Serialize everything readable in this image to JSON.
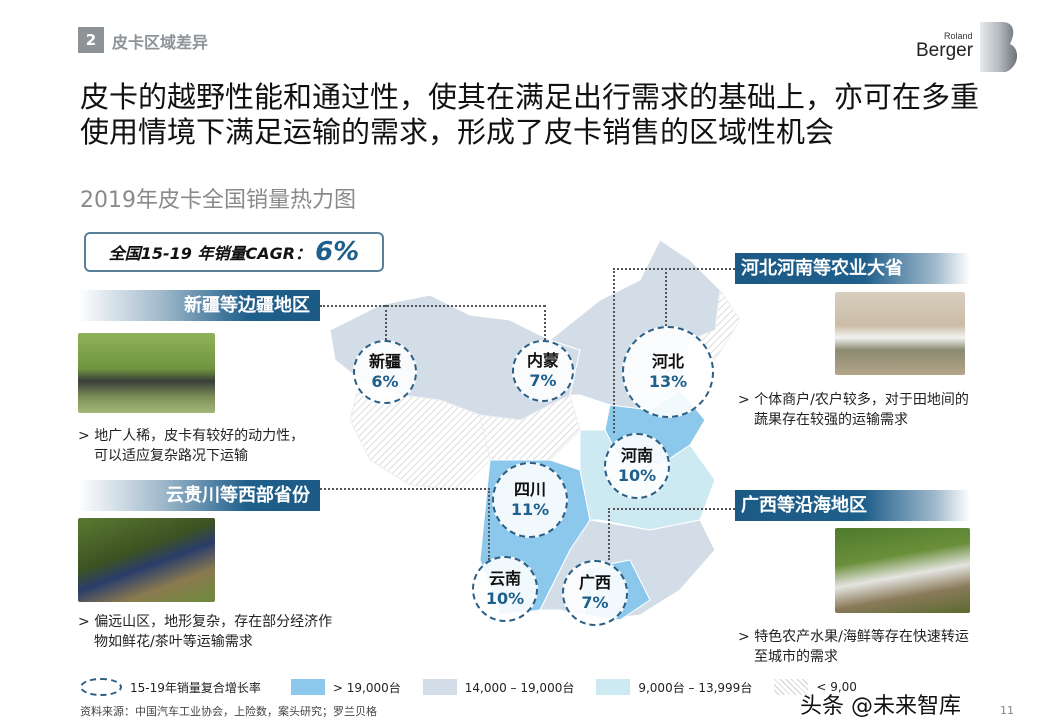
{
  "header": {
    "section_number": "2",
    "section_title": "皮卡区域差异",
    "logo_small": "Roland",
    "logo_large": "Berger"
  },
  "headline": "皮卡的越野性能和通过性，使其在满足出行需求的基础上，亦可在多重使用情境下满足运输的需求，形成了皮卡销售的区域性机会",
  "subtitle": "2019年皮卡全国销量热力图",
  "cagr": {
    "label": "全国15-19 年销量CAGR：",
    "value": "6%"
  },
  "left_panels": [
    {
      "title": "新疆等边疆地区",
      "text": "地广人稀，皮卡有较好的动力性，可以适应复杂路况下运输"
    },
    {
      "title": "云贵川等西部省份",
      "text": "偏远山区，地形复杂，存在部分经济作物如鲜花/茶叶等运输需求"
    }
  ],
  "right_panels": [
    {
      "title": "河北河南等农业大省",
      "text": "个体商户/农户较多，对于田地间的蔬果存在较强的运输需求"
    },
    {
      "title": "广西等沿海地区",
      "text": "特色农产水果/海鲜等存在快速转运至城市的需求"
    }
  ],
  "bullet_marker": ">",
  "regions": [
    {
      "name": "新疆",
      "cagr": "6%"
    },
    {
      "name": "内蒙",
      "cagr": "7%"
    },
    {
      "name": "河北",
      "cagr": "13%"
    },
    {
      "name": "河南",
      "cagr": "10%"
    },
    {
      "name": "四川",
      "cagr": "11%"
    },
    {
      "name": "云南",
      "cagr": "10%"
    },
    {
      "name": "广西",
      "cagr": "7%"
    }
  ],
  "legend": [
    {
      "label": "15-19年销量复合增长率",
      "type": "dashed-circle"
    },
    {
      "label": "> 19,000台",
      "color": "#8cc8ec"
    },
    {
      "label": "14,000 – 19,000台",
      "color": "#d3dde8"
    },
    {
      "label": "9,000台 – 13,999台",
      "color": "#cde9f1"
    },
    {
      "label": "< 9,00",
      "type": "hatched"
    }
  ],
  "source": "资料来源：中国汽车工业协会，上险数，案头研究；罗兰贝格",
  "page_number": "11",
  "watermark": "头条 @未来智库",
  "colors": {
    "accent": "#1f5f8b",
    "high": "#8cc8ec",
    "mid": "#d3dde8",
    "low": "#cde9f1"
  }
}
